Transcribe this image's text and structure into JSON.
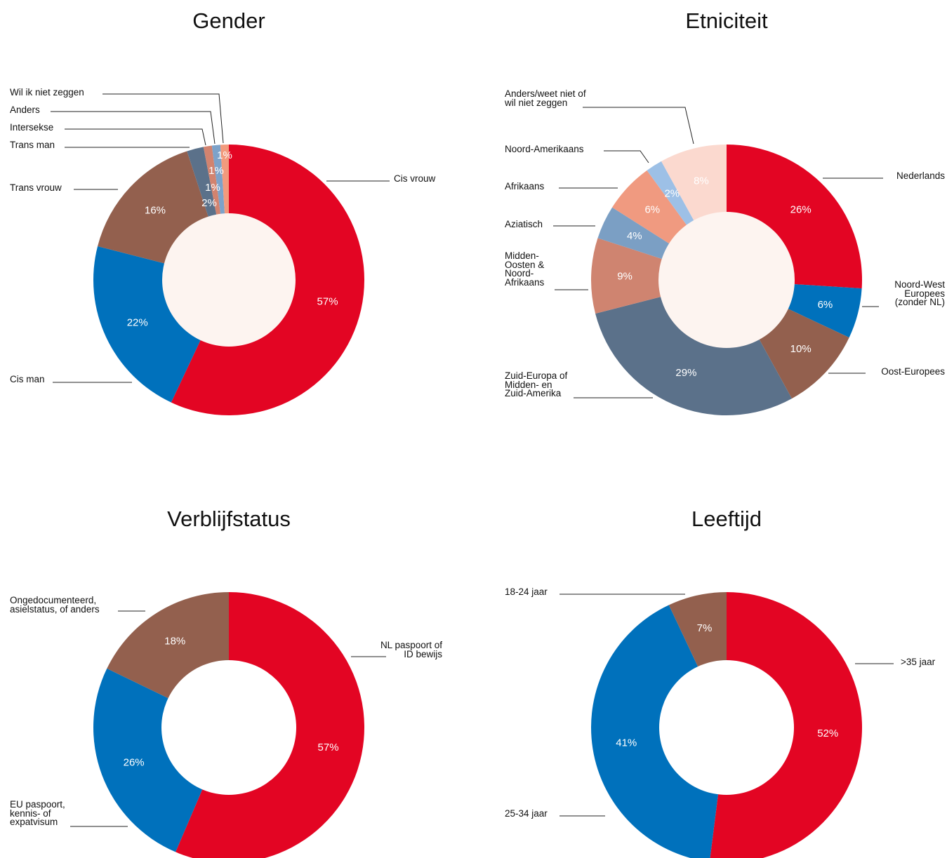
{
  "chart_data": [
    {
      "type": "pie",
      "title": "Gender",
      "categories": [
        "Cis vrouw",
        "Cis man",
        "Trans vrouw",
        "Trans man",
        "Intersekse",
        "Anders",
        "Wil ik niet zeggen"
      ],
      "values": [
        57,
        22,
        16,
        2,
        1,
        1,
        1
      ],
      "value_labels": [
        "57%",
        "22%",
        "16%",
        "2%",
        "1%",
        "1%",
        "1%"
      ],
      "colors": [
        "#e30523",
        "#0071bc",
        "#93604e",
        "#5b718a",
        "#d2836f",
        "#7da2c9",
        "#f29a7d"
      ]
    },
    {
      "type": "pie",
      "title": "Etniciteit",
      "categories": [
        "Nederlands",
        "Noord-West\nEuropees\n(zonder NL)",
        "Oost-Europees",
        "Zuid-Europa of\nMidden- en\nZuid-Amerika",
        "Midden-\nOosten &\nNoord-\nAfrikaans",
        "Aziatisch",
        "Afrikaans",
        "Noord-Amerikaans",
        "Anders/weet niet of\nwil niet zeggen"
      ],
      "values": [
        26,
        6,
        10,
        29,
        9,
        4,
        6,
        2,
        8
      ],
      "value_labels": [
        "26%",
        "6%",
        "10%",
        "29%",
        "9%",
        "4%",
        "6%",
        "2%",
        "8%"
      ],
      "colors": [
        "#e30523",
        "#0071bc",
        "#93604e",
        "#5b718a",
        "#cf8470",
        "#7b9fc4",
        "#f09a80",
        "#9dc0e6",
        "#fbd9cf"
      ]
    },
    {
      "type": "pie",
      "title": "Verblijfstatus",
      "categories": [
        "NL paspoort of\nID bewijs",
        "EU paspoort,\nkennis- of\nexpatvisum",
        "Ongedocumenteerd,\nasielstatus, of anders"
      ],
      "values": [
        57,
        26,
        18
      ],
      "value_labels": [
        "57%",
        "26%",
        "18%"
      ],
      "colors": [
        "#e30523",
        "#0071bc",
        "#93604e"
      ]
    },
    {
      "type": "pie",
      "title": "Leeftijd",
      "categories": [
        ">35 jaar",
        "25-34 jaar",
        "18-24 jaar"
      ],
      "values": [
        52,
        41,
        7
      ],
      "value_labels": [
        "52%",
        "41%",
        "7%"
      ],
      "colors": [
        "#e30523",
        "#0071bc",
        "#93604e"
      ]
    }
  ]
}
